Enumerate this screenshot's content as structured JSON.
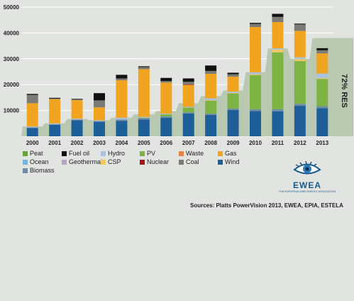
{
  "chart_data": {
    "type": "bar",
    "stacked": true,
    "categories": [
      "2000",
      "2001",
      "2002",
      "2003",
      "2004",
      "2005",
      "2006",
      "2007",
      "2008",
      "2009",
      "2010",
      "2011",
      "2012",
      "2013"
    ],
    "ylim": [
      0,
      50000
    ],
    "yticks": [
      0,
      10000,
      20000,
      30000,
      40000,
      50000
    ],
    "ytick_labels": [
      "",
      "10000",
      "20000",
      "30000",
      "40000",
      "50000"
    ],
    "grid": true,
    "legend_position": "bottom",
    "series": [
      {
        "name": "Wind",
        "color": "#1e5f9a",
        "values": [
          3200,
          4400,
          6200,
          5600,
          6000,
          6500,
          7200,
          8800,
          8300,
          10200,
          9800,
          9700,
          11800,
          10900
        ]
      },
      {
        "name": "Biomass",
        "color": "#6f8ea6",
        "values": [
          300,
          300,
          300,
          300,
          500,
          500,
          500,
          500,
          500,
          600,
          700,
          800,
          800,
          800
        ]
      },
      {
        "name": "Peat",
        "color": "#6aa03a",
        "values": [
          0,
          0,
          0,
          0,
          0,
          0,
          0,
          0,
          0,
          0,
          0,
          0,
          0,
          0
        ]
      },
      {
        "name": "PV",
        "color": "#7cb342",
        "values": [
          0,
          0,
          0,
          0,
          0,
          200,
          800,
          1800,
          5000,
          5800,
          13200,
          22000,
          16500,
          10500
        ]
      },
      {
        "name": "Geothermal",
        "color": "#b7a4c4",
        "values": [
          0,
          0,
          0,
          0,
          0,
          0,
          0,
          0,
          0,
          0,
          0,
          0,
          0,
          0
        ]
      },
      {
        "name": "CSP",
        "color": "#f2c766",
        "values": [
          0,
          0,
          0,
          0,
          0,
          0,
          0,
          0,
          200,
          200,
          300,
          1000,
          800,
          300
        ]
      },
      {
        "name": "Hydro",
        "color": "#aac4df",
        "values": [
          300,
          300,
          300,
          300,
          700,
          300,
          300,
          300,
          700,
          500,
          800,
          500,
          700,
          1800
        ]
      },
      {
        "name": "Ocean",
        "color": "#76b4dc",
        "values": [
          0,
          0,
          0,
          0,
          0,
          0,
          0,
          0,
          0,
          0,
          0,
          0,
          0,
          0
        ]
      },
      {
        "name": "Gas",
        "color": "#f0a420",
        "values": [
          9000,
          9400,
          7200,
          5000,
          14500,
          18500,
          12000,
          8500,
          9500,
          5800,
          17500,
          10200,
          10200,
          7800
        ]
      },
      {
        "name": "Waste",
        "color": "#e0884a",
        "values": [
          0,
          0,
          0,
          0,
          0,
          0,
          0,
          0,
          0,
          0,
          0,
          0,
          0,
          0
        ]
      },
      {
        "name": "Nuclear",
        "color": "#a31515",
        "values": [
          0,
          0,
          0,
          0,
          0,
          0,
          0,
          200,
          0,
          0,
          0,
          0,
          0,
          0
        ]
      },
      {
        "name": "Coal",
        "color": "#7a7a76",
        "values": [
          3200,
          200,
          300,
          2700,
          700,
          800,
          600,
          1000,
          1100,
          900,
          1200,
          2000,
          2500,
          1200
        ]
      },
      {
        "name": "Fuel oil",
        "color": "#111111",
        "values": [
          400,
          300,
          200,
          2800,
          1400,
          300,
          1200,
          1300,
          2100,
          600,
          400,
          1200,
          300,
          800
        ]
      }
    ],
    "res_share": {
      "label": "72% RES",
      "values": [
        3800,
        5000,
        6700,
        6200,
        7200,
        8500,
        9800,
        12800,
        15600,
        17700,
        24800,
        34000,
        30000,
        38000
      ]
    },
    "colors": {
      "background": "#e2e4e1",
      "res_area": "#b9c8b0",
      "grid": "#ffffff"
    }
  },
  "legend": [
    {
      "label": "Peat",
      "color": "#6aa03a"
    },
    {
      "label": "Fuel oil",
      "color": "#111111"
    },
    {
      "label": "Hydro",
      "color": "#aac4df"
    },
    {
      "label": "PV",
      "color": "#7cb342"
    },
    {
      "label": "Waste",
      "color": "#e0884a"
    },
    {
      "label": "Gas",
      "color": "#f0a420"
    },
    {
      "label": "Ocean",
      "color": "#76b4dc"
    },
    {
      "label": "Geothermal",
      "color": "#b7a4c4"
    },
    {
      "label": "CSP",
      "color": "#f2c766"
    },
    {
      "label": "Nuclear",
      "color": "#a31515"
    },
    {
      "label": "Coal",
      "color": "#7a7a76"
    },
    {
      "label": "Wind",
      "color": "#1e5f9a"
    },
    {
      "label": "Biomass",
      "color": "#6f8ea6"
    }
  ],
  "logo": {
    "name": "EWEA",
    "tagline": "THE EUROPEAN WIND ENERGY ASSOCIATION"
  },
  "sources": "Sources:  Platts PowerVision 2013, EWEA, EPIA, ESTELA"
}
